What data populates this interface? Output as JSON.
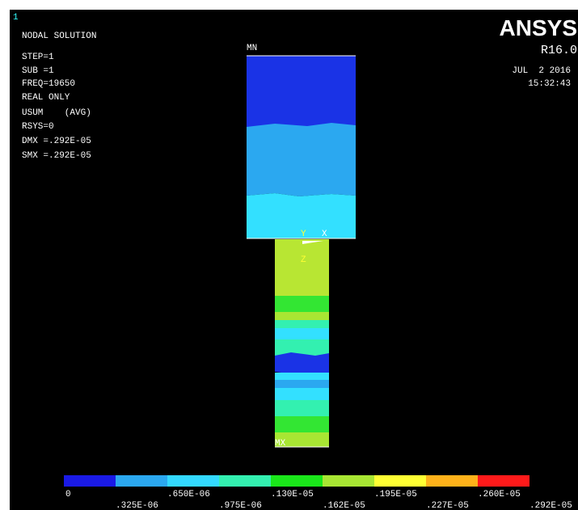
{
  "header": {
    "window_number": "1",
    "title": "NODAL SOLUTION",
    "info": [
      "STEP=1",
      "SUB =1",
      "FREQ=19650",
      "REAL ONLY",
      "USUM    (AVG)",
      "RSYS=0",
      "DMX =.292E-05",
      "SMX =.292E-05"
    ]
  },
  "brand": {
    "name": "ANSYS",
    "version": "R16.0",
    "date": "JUL  2 2016",
    "time": "15:32:43"
  },
  "labels": {
    "min": "MN",
    "max": "MX",
    "axes": [
      "Y",
      "X",
      "Z"
    ]
  },
  "legend": {
    "labels": [
      "0",
      ".325E-06",
      ".650E-06",
      ".975E-06",
      ".130E-05",
      ".162E-05",
      ".195E-05",
      ".227E-05",
      ".260E-05",
      ".292E-05"
    ]
  }
}
